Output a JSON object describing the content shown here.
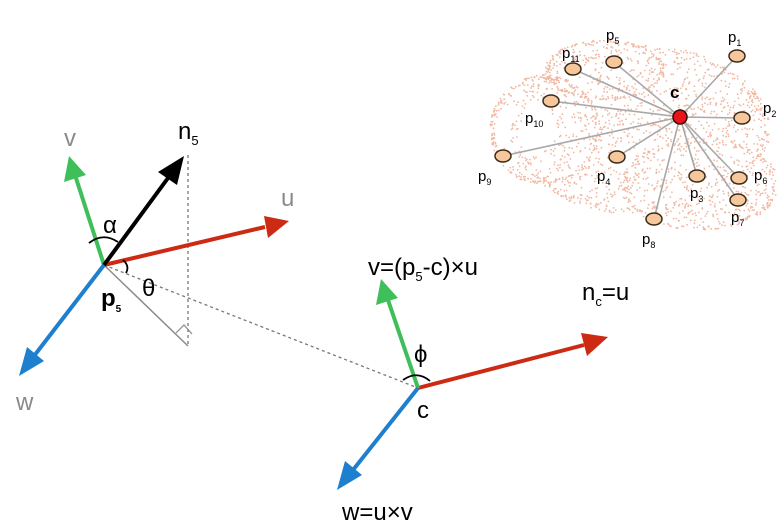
{
  "left_frame": {
    "point": {
      "base": "p",
      "sub": "5"
    },
    "normal": {
      "base": "n",
      "sub": "5"
    },
    "axis_u": "u",
    "axis_v": "v",
    "axis_w": "w",
    "angle_alpha": "α",
    "angle_theta": "θ"
  },
  "center_frame": {
    "origin": "c",
    "v_def": {
      "pre": "v=(p",
      "sub": "5",
      "post": "-c)×u"
    },
    "w_def": "w=u×v",
    "angle_phi": "ϕ"
  },
  "inset": {
    "center_label": "c",
    "nc_def": {
      "pre": "n",
      "sub": "c",
      "post": "=u"
    },
    "points": [
      {
        "base": "p",
        "sub": "1"
      },
      {
        "base": "p",
        "sub": "2"
      },
      {
        "base": "p",
        "sub": "3"
      },
      {
        "base": "p",
        "sub": "4"
      },
      {
        "base": "p",
        "sub": "5"
      },
      {
        "base": "p",
        "sub": "6"
      },
      {
        "base": "p",
        "sub": "7"
      },
      {
        "base": "p",
        "sub": "8"
      },
      {
        "base": "p",
        "sub": "9"
      },
      {
        "base": "p",
        "sub": "10"
      },
      {
        "base": "p",
        "sub": "11"
      }
    ]
  },
  "colors": {
    "u_axis": "#cc2a12",
    "v_axis": "#3fbf5a",
    "w_axis": "#1f7fcf",
    "normal": "#000000",
    "cloud": "#f0b8a3",
    "point_fill": "#f6c79a",
    "center_fill": "#e8141a"
  }
}
